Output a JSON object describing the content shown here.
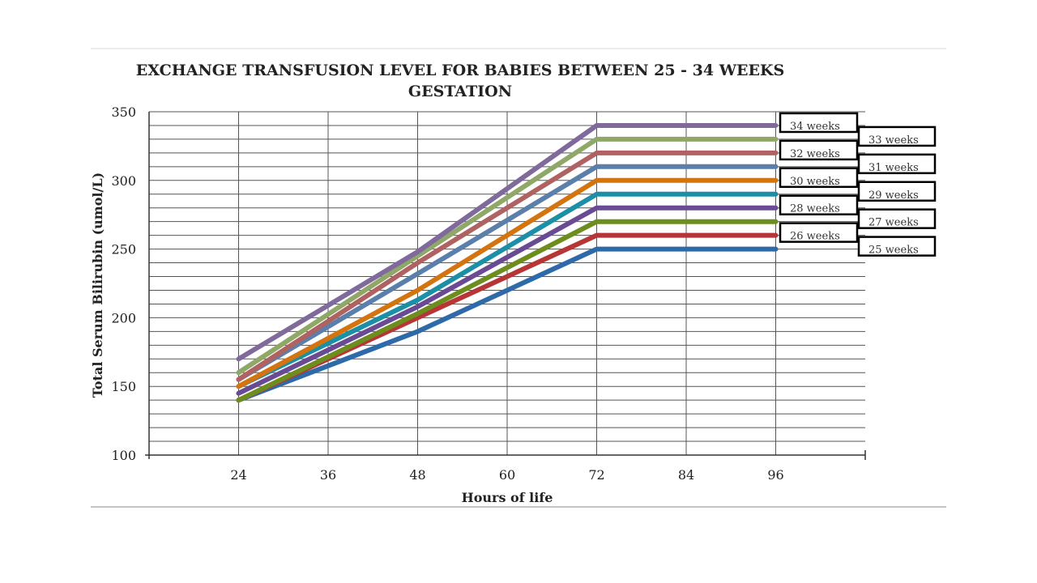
{
  "chart_data": {
    "type": "line",
    "title_lines": [
      "EXCHANGE TRANSFUSION LEVEL FOR BABIES BETWEEN 25 - 34 WEEKS",
      "GESTATION"
    ],
    "xlabel": "Hours of life",
    "ylabel": "Total Serum Bilirubin (umol/L)",
    "x_ticks": [
      24,
      36,
      48,
      60,
      72,
      84,
      96
    ],
    "y_ticks": [
      100,
      150,
      200,
      250,
      300,
      350
    ],
    "xlim": [
      12,
      108
    ],
    "ylim": [
      100,
      350
    ],
    "grid": true,
    "legend_placement": "right",
    "x": [
      24,
      48,
      72,
      96
    ],
    "series": [
      {
        "name": "34 weeks",
        "color": "#7f6a9b",
        "values": [
          170,
          248,
          340,
          340
        ]
      },
      {
        "name": "33 weeks",
        "color": "#8fa868",
        "values": [
          160,
          245,
          330,
          330
        ]
      },
      {
        "name": "32 weeks",
        "color": "#b06262",
        "values": [
          155,
          240,
          320,
          320
        ]
      },
      {
        "name": "31 weeks",
        "color": "#5b7fab",
        "values": [
          155,
          232,
          310,
          310
        ]
      },
      {
        "name": "30 weeks",
        "color": "#d4740f",
        "values": [
          150,
          220,
          300,
          300
        ]
      },
      {
        "name": "29 weeks",
        "color": "#1b8fa6",
        "values": [
          150,
          213,
          290,
          290
        ]
      },
      {
        "name": "28 weeks",
        "color": "#6a4a93",
        "values": [
          145,
          208,
          280,
          280
        ]
      },
      {
        "name": "27 weeks",
        "color": "#6d8e1f",
        "values": [
          140,
          203,
          270,
          270
        ]
      },
      {
        "name": "26 weeks",
        "color": "#b83535",
        "values": [
          140,
          200,
          260,
          260
        ]
      },
      {
        "name": "25 weeks",
        "color": "#2e6aa9",
        "values": [
          140,
          190,
          250,
          250
        ]
      }
    ]
  }
}
